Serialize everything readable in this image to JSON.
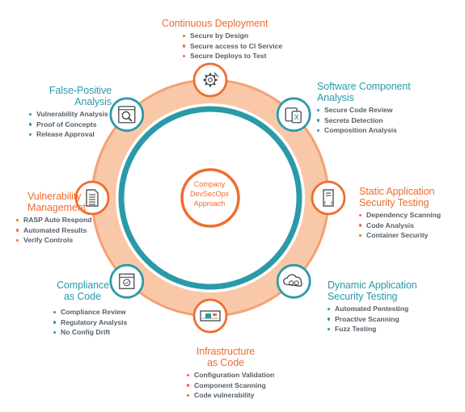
{
  "center": {
    "lines": [
      "Company",
      "DevSecOps",
      "Approach"
    ]
  },
  "colors": {
    "orange": "#ef6d2f",
    "ring_fill": "#f9c8a8",
    "ring_stroke": "#f3a274",
    "teal": "#2a9aa8",
    "text_grey": "#555e66"
  },
  "nodes": [
    {
      "id": "continuous-deployment",
      "icon": "settings-icon",
      "color": "orange",
      "title_lines": [
        "Continuous Deployment"
      ],
      "items": [
        "Secure by Design",
        "Secure access to CI Service",
        "Secure Deploys to Test"
      ]
    },
    {
      "id": "software-component-analysis",
      "icon": "devices-icon",
      "color": "teal",
      "title_lines": [
        "Software Component",
        "Analysis"
      ],
      "items": [
        "Secure Code Review",
        "Secrets Detection",
        "Composition Analysis"
      ]
    },
    {
      "id": "static-application-security-testing",
      "icon": "code-server-icon",
      "color": "orange",
      "title_lines": [
        "Static Application",
        "Security Testing"
      ],
      "items": [
        "Dependency Scanning",
        "Code Analysis",
        "Container Security"
      ]
    },
    {
      "id": "dynamic-application-security-testing",
      "icon": "cloud-gear-icon",
      "color": "teal",
      "title_lines": [
        "Dynamic Application",
        "Security Testing"
      ],
      "items": [
        "Automated Pentesting",
        "Proactive Scanning",
        "Fuzz Testing"
      ]
    },
    {
      "id": "infrastructure-as-code",
      "icon": "circuit-board-icon",
      "color": "orange",
      "title_lines": [
        "Infrastructure",
        "as Code"
      ],
      "items": [
        "Configuration Validation",
        "Component Scanning",
        "Code vulnerability"
      ]
    },
    {
      "id": "compliance-as-code",
      "icon": "certificate-icon",
      "color": "teal",
      "title_lines": [
        "Compliance",
        "as Code"
      ],
      "items": [
        "Compliance Review",
        "Regulatory Analysis",
        "No Config Drift"
      ]
    },
    {
      "id": "vulnerability-management",
      "icon": "document-icon",
      "color": "orange",
      "title_lines": [
        "Vulnerability",
        "Management"
      ],
      "items": [
        "RASP Auto Respond",
        "Automated Results",
        "Verify Controls"
      ]
    },
    {
      "id": "false-positive-analysis",
      "icon": "magnifier-window-icon",
      "color": "teal",
      "title_lines": [
        "False-Positive",
        "Analysis"
      ],
      "items": [
        "Vulnerability Analysis",
        "Proof of Concepts",
        "Release Approval"
      ]
    }
  ]
}
